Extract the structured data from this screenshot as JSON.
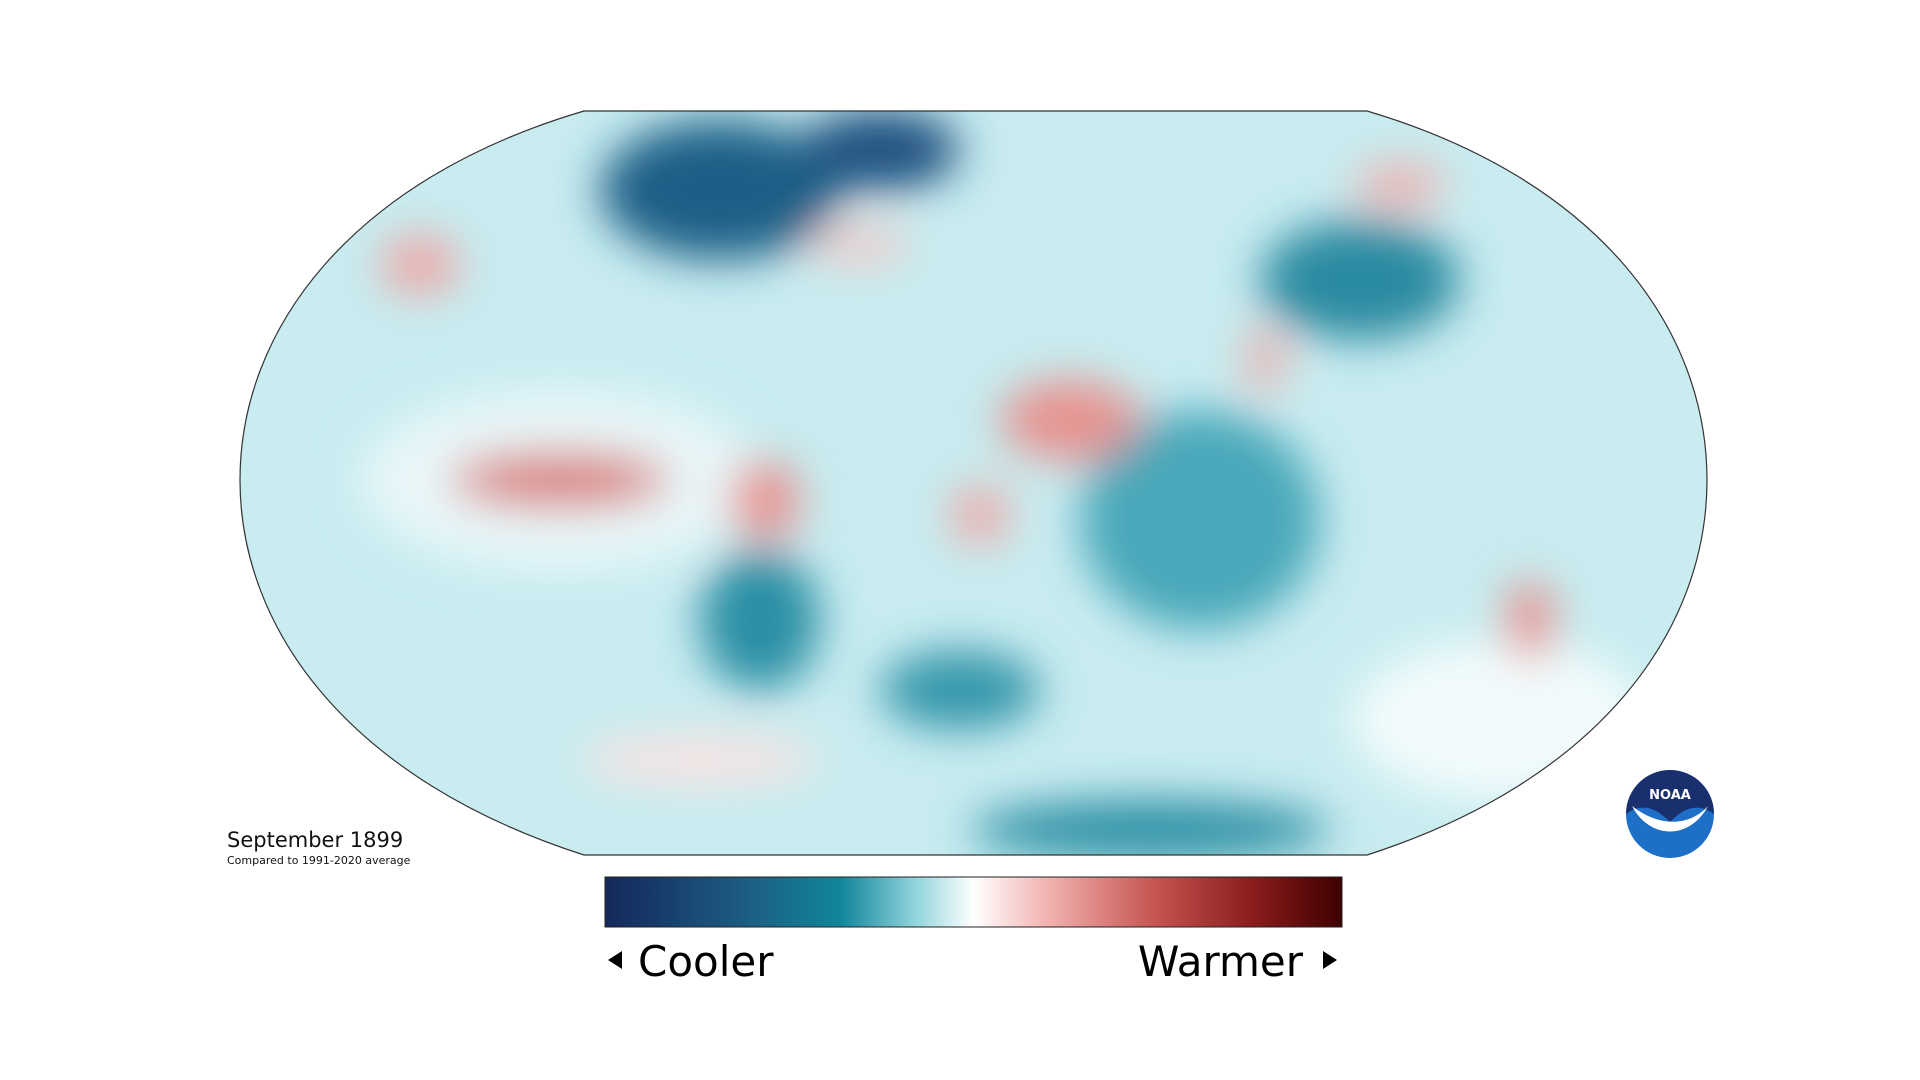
{
  "map": {
    "title": "September 1899",
    "subtitle": "Compared to 1991-2020 average",
    "legend": {
      "low": "Cooler",
      "high": "Warmer"
    },
    "logo": "NOAA"
  }
}
